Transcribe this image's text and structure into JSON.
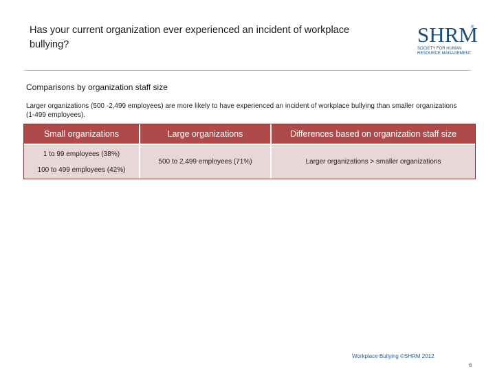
{
  "slide": {
    "title": "Has your current organization ever experienced an incident of workplace bullying?",
    "subtitle": "Comparisons by organization staff size",
    "description": "Larger organizations (500 -2,499 employees) are more likely to have experienced an incident of workplace bullying than smaller organizations (1-499 employees).",
    "footer": "Workplace Bullying ©SHRM 2012",
    "page_number": "6"
  },
  "logo": {
    "wordmark": "SHRM",
    "registered": "®",
    "tagline": "SOCIETY FOR HUMAN RESOURCE MANAGEMENT"
  },
  "table": {
    "headers": [
      "Small organizations",
      "Large organizations",
      "Differences based on organization staff size"
    ],
    "rows": [
      {
        "small": [
          "1 to 99 employees (38%)",
          "100 to 499 employees (42%)"
        ],
        "large": "500 to 2,499 employees (71%)",
        "difference": "Larger organizations > smaller organizations"
      }
    ]
  },
  "colors": {
    "header_fill": "#b04a4a",
    "body_fill": "#e9d6d6",
    "accent_text": "#2e5d8c",
    "logo": "#1f4e79"
  }
}
